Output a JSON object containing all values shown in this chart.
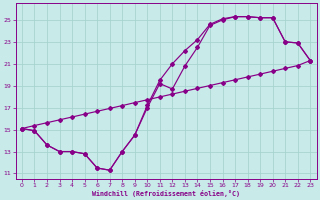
{
  "xlabel": "Windchill (Refroidissement éolien,°C)",
  "bg_color": "#c8eae8",
  "grid_color": "#a8d4d0",
  "line_color": "#880088",
  "xlim": [
    -0.5,
    23.5
  ],
  "ylim": [
    10.5,
    26.5
  ],
  "xticks": [
    0,
    1,
    2,
    3,
    4,
    5,
    6,
    7,
    8,
    9,
    10,
    11,
    12,
    13,
    14,
    15,
    16,
    17,
    18,
    19,
    20,
    21,
    22,
    23
  ],
  "yticks": [
    11,
    13,
    15,
    17,
    19,
    21,
    23,
    25
  ],
  "curveA_x": [
    0,
    1,
    2,
    3,
    4,
    5,
    6,
    7,
    8,
    9,
    10,
    11,
    12,
    13,
    14,
    15,
    16,
    17,
    18,
    19,
    20,
    21,
    22,
    23
  ],
  "curveA_y": [
    15.1,
    14.9,
    13.6,
    13.0,
    13.0,
    12.8,
    11.5,
    11.3,
    13.0,
    14.5,
    17.0,
    19.2,
    18.7,
    20.8,
    22.5,
    24.5,
    25.0,
    25.3,
    25.3,
    25.2,
    25.2,
    23.0,
    22.9,
    21.3
  ],
  "curveB_x": [
    0,
    1,
    2,
    3,
    4,
    5,
    6,
    7,
    8,
    9,
    10,
    11,
    12,
    13,
    14,
    15,
    16,
    17,
    18,
    19,
    20,
    21,
    22,
    23
  ],
  "curveB_y": [
    15.1,
    14.9,
    13.6,
    13.0,
    13.0,
    12.8,
    11.5,
    11.3,
    13.0,
    14.5,
    17.2,
    19.5,
    21.0,
    22.2,
    23.2,
    24.6,
    25.1,
    25.3,
    25.3,
    25.2,
    25.2,
    23.0,
    22.9,
    21.3
  ],
  "curveC_x": [
    0,
    1,
    2,
    3,
    4,
    5,
    6,
    7,
    8,
    9,
    10,
    11,
    12,
    13,
    14,
    15,
    16,
    17,
    18,
    19,
    20,
    21,
    22,
    23
  ],
  "curveC_y": [
    15.1,
    15.37,
    15.63,
    15.89,
    16.15,
    16.41,
    16.67,
    16.93,
    17.19,
    17.46,
    17.72,
    17.98,
    18.24,
    18.5,
    18.76,
    19.02,
    19.28,
    19.54,
    19.8,
    20.06,
    20.32,
    20.58,
    20.84,
    21.3
  ]
}
